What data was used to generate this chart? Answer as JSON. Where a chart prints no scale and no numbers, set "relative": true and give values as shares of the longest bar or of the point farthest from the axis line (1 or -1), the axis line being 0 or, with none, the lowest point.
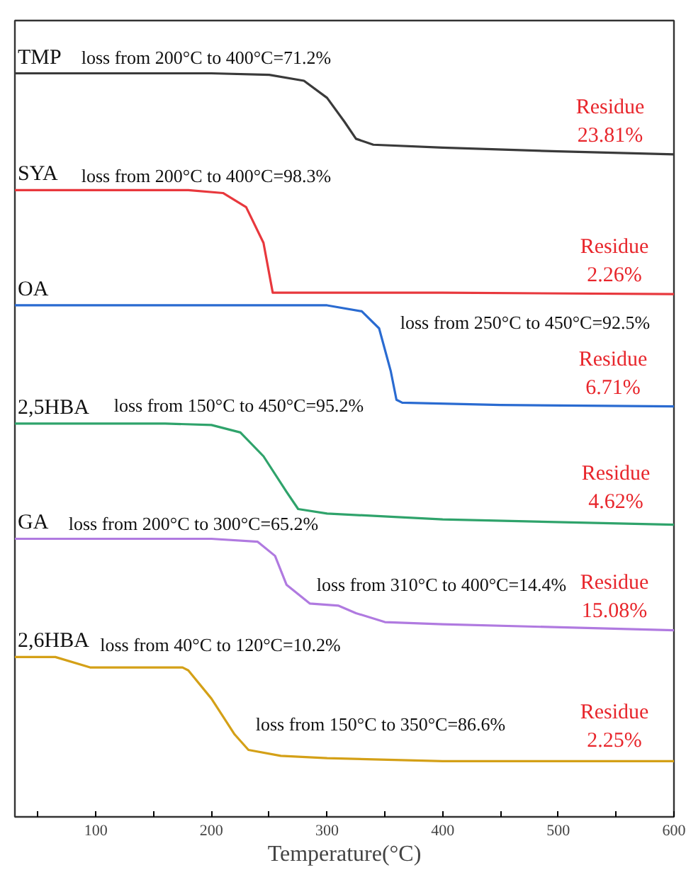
{
  "chart_data": {
    "type": "line",
    "relative": true,
    "xlabel": "Temperature(°C)",
    "xlim": [
      30,
      600
    ],
    "xticks": [
      {
        "value": 50,
        "label": null
      },
      100,
      {
        "value": 150,
        "label": null
      },
      200,
      {
        "value": 250,
        "label": null
      },
      300,
      {
        "value": 350,
        "label": null
      },
      400,
      {
        "value": 450,
        "label": null
      },
      500,
      {
        "value": 550,
        "label": null
      },
      600
    ],
    "grid": false,
    "legend": false,
    "series": [
      {
        "name": "TMP",
        "color": "#3a3a3a",
        "x": [
          30,
          200,
          250,
          280,
          300,
          315,
          325,
          340,
          400,
          500,
          600
        ],
        "values": [
          1.0,
          1.0,
          0.998,
          0.99,
          0.967,
          0.935,
          0.912,
          0.904,
          0.9,
          0.895,
          0.891
        ]
      },
      {
        "name": "SYA",
        "color": "#e8383d",
        "x": [
          30,
          180,
          210,
          230,
          245,
          253,
          400,
          600
        ],
        "values": [
          0.843,
          0.843,
          0.839,
          0.82,
          0.772,
          0.705,
          0.705,
          0.703
        ]
      },
      {
        "name": "OA",
        "color": "#2a6bd1",
        "x": [
          30,
          300,
          330,
          345,
          355,
          360,
          365,
          450,
          600
        ],
        "values": [
          0.688,
          0.688,
          0.68,
          0.657,
          0.6,
          0.561,
          0.557,
          0.554,
          0.552
        ]
      },
      {
        "name": "2,5HBA",
        "color": "#2fa36b",
        "x": [
          30,
          160,
          200,
          225,
          245,
          265,
          275,
          300,
          400,
          600
        ],
        "values": [
          0.529,
          0.529,
          0.527,
          0.517,
          0.485,
          0.437,
          0.414,
          0.408,
          0.4,
          0.393
        ]
      },
      {
        "name": "GA",
        "color": "#b07ae0",
        "x": [
          30,
          200,
          240,
          255,
          265,
          285,
          310,
          325,
          350,
          400,
          600
        ],
        "values": [
          0.374,
          0.374,
          0.37,
          0.351,
          0.312,
          0.287,
          0.284,
          0.274,
          0.262,
          0.259,
          0.251
        ]
      },
      {
        "name": "2,6HBA",
        "color": "#d4a017",
        "x": [
          30,
          65,
          95,
          175,
          180,
          200,
          220,
          232,
          260,
          300,
          400,
          600
        ],
        "values": [
          0.215,
          0.215,
          0.201,
          0.201,
          0.197,
          0.159,
          0.111,
          0.09,
          0.082,
          0.079,
          0.075,
          0.075
        ]
      }
    ],
    "annotations": [
      "loss from 200°C to 400°C=71.2%",
      "Residue\n23.81%",
      "loss from 200°C to 400°C=98.3%",
      "Residue\n2.26%",
      "loss from 250°C to 450°C=92.5%",
      "Residue\n6.71%",
      "loss from 150°C to 450°C=95.2%",
      "Residue\n4.62%",
      "loss from 200°C to 300°C=65.2%",
      "loss from 310°C to 400°C=14.4%",
      "Residue\n15.08%",
      "loss from 40°C to 120°C=10.2%",
      "loss from 150°C to 350°C=86.6%",
      "Residue\n2.25%"
    ]
  }
}
